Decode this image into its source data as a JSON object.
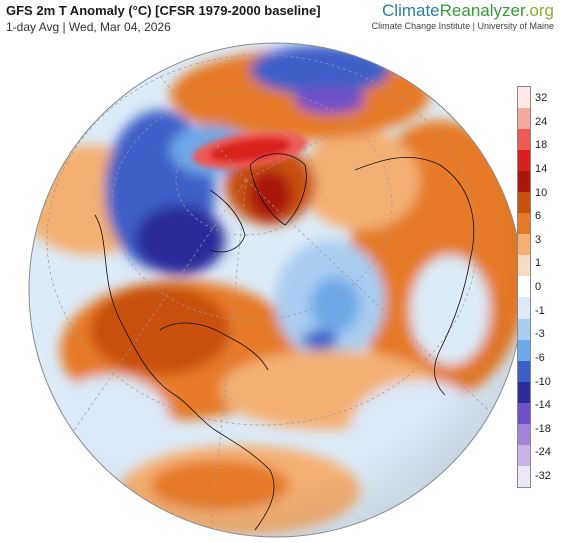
{
  "header": {
    "title": "GFS 2m T Anomaly (°C) [CFSR 1979-2000 baseline]",
    "subtitle": "1-day Avg | Wed, Mar 04, 2026"
  },
  "brand": {
    "part1": "Climate",
    "part2": "Reanalyzer",
    "part3": ".org",
    "credit": "Climate Change Institute | University of Maine"
  },
  "legend": {
    "ticks": [
      "32",
      "24",
      "18",
      "14",
      "10",
      "6",
      "3",
      "1",
      "0",
      "-1",
      "-3",
      "-6",
      "-10",
      "-14",
      "-18",
      "-24",
      "-32"
    ],
    "colors": [
      "#fde8e4",
      "#f4a9a0",
      "#ec5a55",
      "#d8201f",
      "#a8160c",
      "#c8500a",
      "#e67a25",
      "#f4b073",
      "#f9dcc0",
      "#ffffff",
      "#dbe9f8",
      "#a9cdf1",
      "#6ea8e8",
      "#3e5fc8",
      "#2c2c9a",
      "#7050c8",
      "#a384d8",
      "#c9b3e8",
      "#efe6f6"
    ]
  }
}
